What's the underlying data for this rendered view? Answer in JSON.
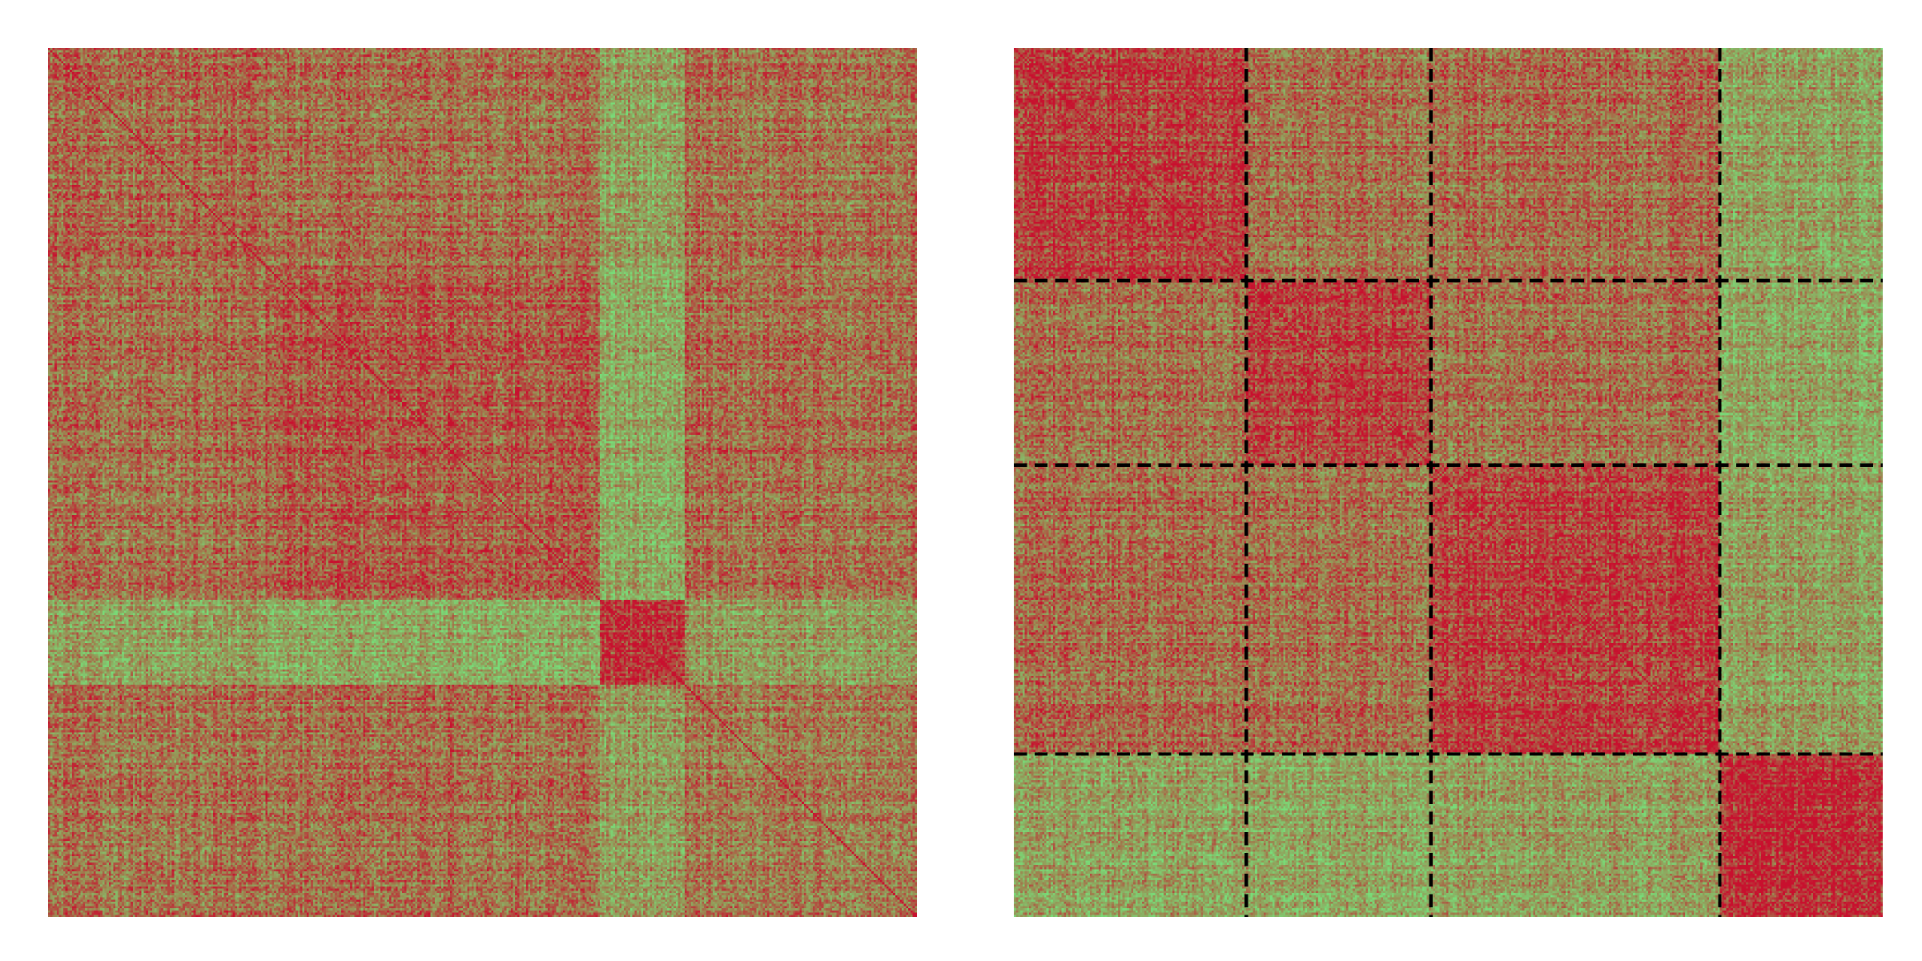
{
  "chart_data": [
    {
      "type": "heatmap",
      "title": "",
      "xlabel": "",
      "ylabel": "",
      "matrix_size": 400,
      "colormap": {
        "high": "#c8102e",
        "mid": "#9b8a52",
        "low": "#78dc78"
      },
      "axes_visible": false,
      "grid": false,
      "ordering": "unsorted",
      "groups_in_order": [
        {
          "id": "A",
          "size": 100,
          "start": 0
        },
        {
          "id": "B",
          "size": 154,
          "start": 100
        },
        {
          "id": "E",
          "size": 39,
          "start": 254
        },
        {
          "id": "C",
          "size": 107,
          "start": 293
        }
      ],
      "block_mean_similarity": {
        "A-A": 0.62,
        "A-B": 0.6,
        "A-C": 0.58,
        "A-E": 0.35,
        "B-B": 0.7,
        "B-C": 0.6,
        "B-E": 0.3,
        "C-C": 0.55,
        "C-E": 0.38,
        "E-E": 0.86
      },
      "separator_lines": []
    },
    {
      "type": "heatmap",
      "title": "",
      "xlabel": "",
      "ylabel": "",
      "matrix_size": 400,
      "colormap": {
        "high": "#c8102e",
        "mid": "#9b8a52",
        "low": "#78dc78"
      },
      "axes_visible": false,
      "grid": false,
      "ordering": "grouped",
      "groups_in_order": [
        {
          "id": "A",
          "size": 107
        },
        {
          "id": "B",
          "size": 85
        },
        {
          "id": "C",
          "size": 133
        },
        {
          "id": "E",
          "size": 75
        }
      ],
      "block_mean_similarity": {
        "A-A": 0.82,
        "A-B": 0.6,
        "A-C": 0.62,
        "A-E": 0.35,
        "B-B": 0.8,
        "B-C": 0.6,
        "B-E": 0.32,
        "C-C": 0.8,
        "C-E": 0.36,
        "E-E": 0.88
      },
      "separator_lines": [
        {
          "orientation": "vertical",
          "at_index": 107
        },
        {
          "orientation": "vertical",
          "at_index": 192
        },
        {
          "orientation": "vertical",
          "at_index": 325
        },
        {
          "orientation": "horizontal",
          "at_index": 107
        },
        {
          "orientation": "horizontal",
          "at_index": 192
        },
        {
          "orientation": "horizontal",
          "at_index": 325
        }
      ],
      "separator_style": {
        "color": "#000000",
        "dash": "dashed"
      }
    }
  ]
}
